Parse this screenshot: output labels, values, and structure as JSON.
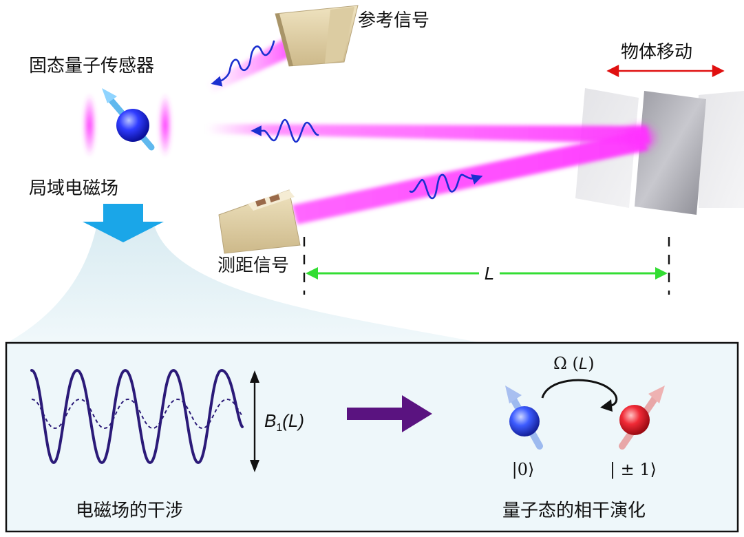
{
  "labels": {
    "sensor": "固态量子传感器",
    "reference_signal": "参考信号",
    "object_moving": "物体移动",
    "local_field": "局域电磁场",
    "ranging_signal": "测距信号",
    "distance": "L",
    "interference": "电磁场的干涉",
    "coherent_evolution": "量子态的相干演化",
    "b1_main": "B",
    "b1_sub": "1",
    "b1_arg": "(L)",
    "omega_main": "Ω (",
    "omega_arg": "L",
    "omega_close": ")",
    "state_0": "|0⟩",
    "state_pm1": "| ± 1⟩"
  },
  "colors": {
    "beam": "#ff44ff",
    "wave": "#1a2fd0",
    "plates": "#b0b0b8",
    "distance_arrow": "#33dd33",
    "move_arrow": "#e01010",
    "down_arrow": "#1aa6e8",
    "panel_bg": "#eef7fa",
    "sine": "#2b1a78",
    "purple_arrow": "#5a1380",
    "spin_blue": "#2f4bff",
    "spin_red": "#ee2030"
  }
}
